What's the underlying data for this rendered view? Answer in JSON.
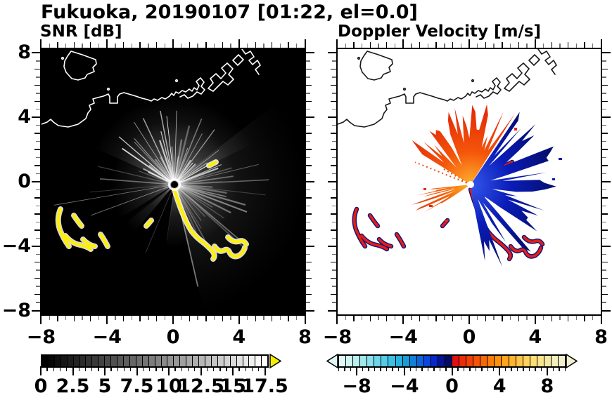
{
  "title": "Fukuoka, 20190107 [01:22, el=0.0]",
  "panels": {
    "snr": {
      "subtitle": "SNR [dB]"
    },
    "doppler": {
      "subtitle": "Doppler Velocity [m/s]"
    }
  },
  "chart_data": [
    {
      "type": "heatmap",
      "panel": "SNR [dB]",
      "xlim": [
        -8.1,
        8.1
      ],
      "ylim": [
        -8.3,
        8.3
      ],
      "grid": false,
      "x_ticks": {
        "values": [
          -8,
          -4,
          0,
          4,
          8
        ],
        "labels": [
          "−8",
          "−4",
          "0",
          "4",
          "8"
        ],
        "minor_step": 0.5
      },
      "y_ticks": {
        "values": [
          8,
          4,
          0,
          -4,
          -8
        ],
        "labels": [
          "8",
          "4",
          "0",
          "−4",
          "−8"
        ],
        "minor_step": 0.5
      },
      "colorbar": {
        "range": [
          0,
          17.8
        ],
        "cells": 36,
        "tick_values": [
          0,
          2.5,
          5,
          7.5,
          10,
          12.5,
          15,
          17.5
        ],
        "tick_labels": [
          "0",
          "2.5",
          "5",
          "7.5",
          "10",
          "12.5",
          "15",
          "17.5"
        ],
        "minor_step": 0.5,
        "start_color": "#000000",
        "end_color": "#ffffff",
        "over_color": "#f6ee00"
      },
      "radar_center": [
        0,
        0
      ],
      "background": "#000000",
      "coast_color": "#ffffff",
      "high_value_color": "#ffef00",
      "ray_sectors": [
        {
          "from_deg": 18,
          "to_deg": 162,
          "count": 34,
          "len_min": 40,
          "len_max": 115,
          "op_min": 0.25,
          "op_max": 0.9
        },
        {
          "from_deg": -78,
          "to_deg": 18,
          "count": 26,
          "len_min": 50,
          "len_max": 150,
          "op_min": 0.08,
          "op_max": 0.45
        },
        {
          "from_deg": 163,
          "to_deg": 205,
          "count": 5,
          "len_min": 90,
          "len_max": 180,
          "op_min": 0.2,
          "op_max": 0.5
        },
        {
          "from_deg": 215,
          "to_deg": 268,
          "count": 3,
          "len_min": 50,
          "len_max": 90,
          "op_min": 0.06,
          "op_max": 0.18
        }
      ]
    },
    {
      "type": "heatmap",
      "panel": "Doppler Velocity [m/s]",
      "xlim": [
        -8.1,
        8.1
      ],
      "ylim": [
        -8.3,
        8.3
      ],
      "grid": false,
      "x_ticks": {
        "values": [
          -8,
          -4,
          0,
          4,
          8
        ],
        "labels": [
          "−8",
          "−4",
          "0",
          "4",
          "8"
        ],
        "minor_step": 0.5
      },
      "y_ticks": {
        "values": [
          8,
          4,
          0,
          -4,
          -8
        ],
        "labels": [],
        "minor_step": 0.5
      },
      "colorbar": {
        "range": [
          -9.6,
          9.6
        ],
        "tick_values": [
          -8,
          -4,
          0,
          4,
          8
        ],
        "tick_labels": [
          "−8",
          "−4",
          "0",
          "4",
          "8"
        ],
        "minor_step": 0.5,
        "under_color": "#e2f8f6",
        "over_color": "#f2f0ce",
        "palette": [
          "#e2f8f6",
          "#d0f4f2",
          "#baeff0",
          "#a2e9ee",
          "#8ae0ec",
          "#6ed6ea",
          "#54cce8",
          "#3cc0e4",
          "#28b2e0",
          "#189cda",
          "#1280d8",
          "#0e62dc",
          "#0a46e0",
          "#0728c8",
          "#041494",
          "#020a64",
          "#e01010",
          "#ea2c0a",
          "#f04008",
          "#f45408",
          "#f86808",
          "#fc7c08",
          "#fe9010",
          "#ffa41c",
          "#ffb430",
          "#ffc448",
          "#ffd25e",
          "#ffde76",
          "#f8e68e",
          "#f5eaa4",
          "#f3eeba",
          "#f2f0ce"
        ]
      },
      "radar_center": [
        0,
        0
      ],
      "background": "#ffffff",
      "coast_color": "#181818",
      "fans": [
        {
          "name": "red",
          "from_deg": 58,
          "to_deg": 148,
          "r_min": 42,
          "r_max": 104,
          "seed": 7,
          "gradient": [
            "#ffb12d",
            "#f4550a",
            "#e62a08"
          ]
        },
        {
          "name": "wedge",
          "from_deg": 186,
          "to_deg": 214,
          "r_min": 30,
          "r_max": 80,
          "seed": 11,
          "gradient": [
            "#ffb12a",
            "#f2600a",
            "#e8380a"
          ]
        },
        {
          "name": "blue",
          "from_deg": -82,
          "to_deg": 56,
          "r_min": 44,
          "r_max": 118,
          "seed": 13,
          "gradient": [
            "#3458ee",
            "#0a1cb8",
            "#050e70"
          ]
        }
      ],
      "dashed_rays": [
        {
          "angle_deg": 158,
          "len": 85
        },
        {
          "angle_deg": 150,
          "len": 45
        }
      ],
      "dashed_ray_color": "#e8520a"
    }
  ]
}
